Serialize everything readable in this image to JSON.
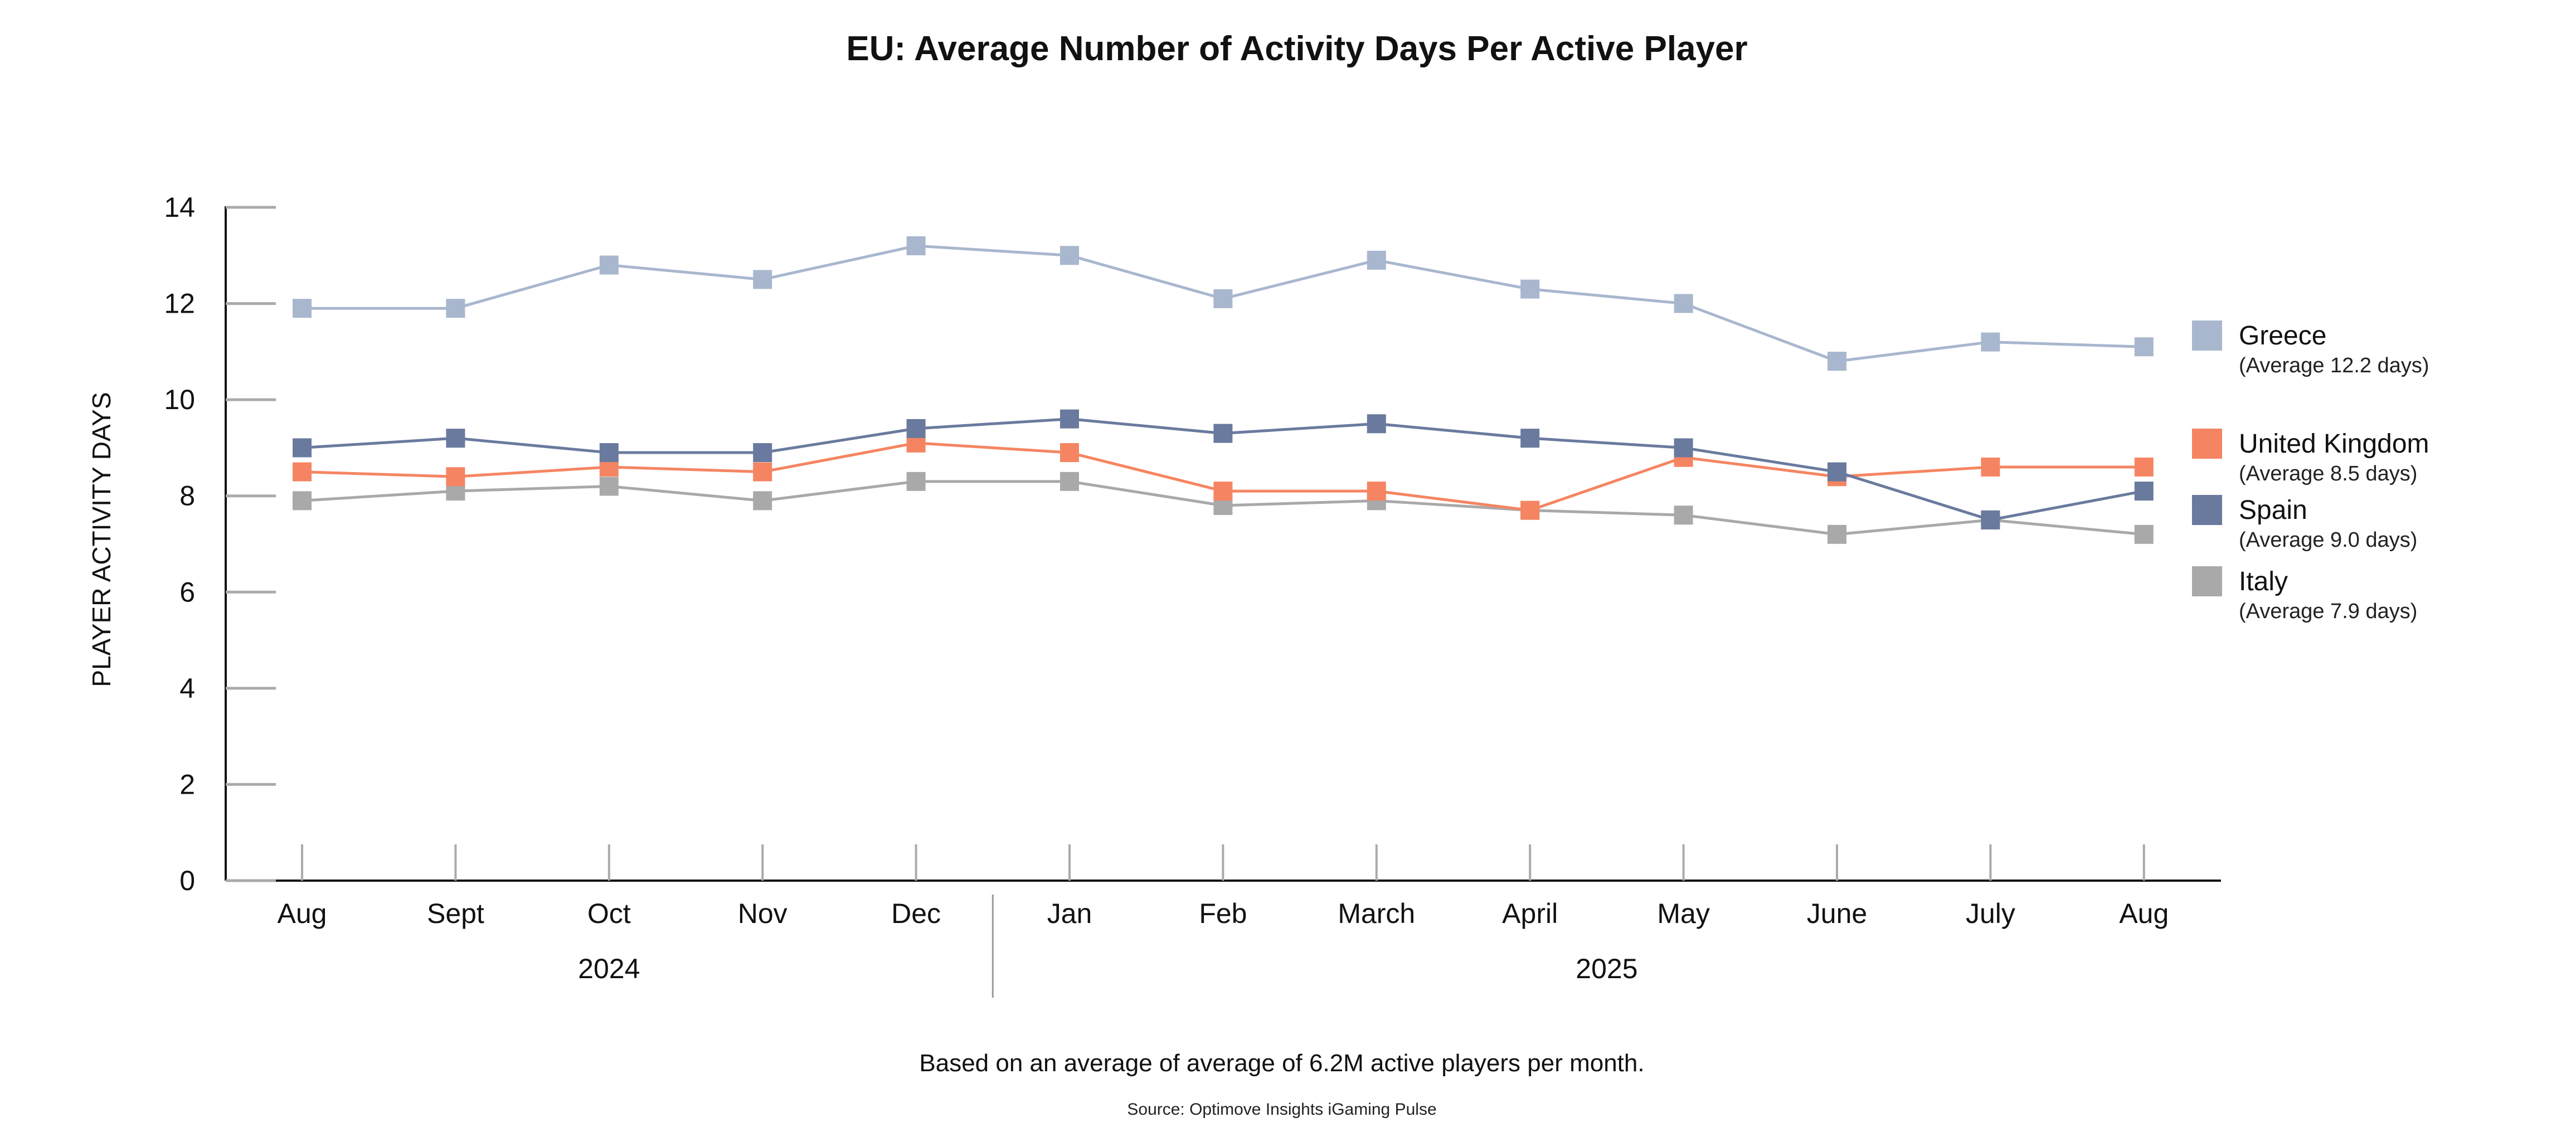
{
  "chart_data": {
    "type": "line",
    "title": "EU: Average Number of Activity Days Per Active Player",
    "ylabel": "PLAYER ACTIVITY DAYS",
    "xlabel": "",
    "ylim": [
      0,
      14
    ],
    "yticks": [
      0,
      2,
      4,
      6,
      8,
      10,
      12,
      14
    ],
    "categories": [
      "Aug",
      "Sept",
      "Oct",
      "Nov",
      "Dec",
      "Jan",
      "Feb",
      "March",
      "April",
      "May",
      "June",
      "July",
      "Aug"
    ],
    "year_groups": [
      {
        "label": "2024",
        "months": 5
      },
      {
        "label": "2025",
        "months": 8
      }
    ],
    "grid": false,
    "legend_placement": "right",
    "marker": "square",
    "series": [
      {
        "name": "Greece",
        "note": "(Average 12.2 days)",
        "color": "#a8b7ce",
        "values": [
          11.9,
          11.9,
          12.8,
          12.5,
          13.2,
          13.0,
          12.1,
          12.9,
          12.3,
          12.0,
          10.8,
          11.2,
          11.1
        ]
      },
      {
        "name": "United Kingdom",
        "note": "(Average 8.5 days)",
        "color": "#f58562",
        "values": [
          8.5,
          8.4,
          8.6,
          8.5,
          9.1,
          8.9,
          8.1,
          8.1,
          7.7,
          8.8,
          8.4,
          8.6,
          8.6
        ]
      },
      {
        "name": "Spain",
        "note": "(Average 9.0 days)",
        "color": "#6a7a9e",
        "values": [
          9.0,
          9.2,
          8.9,
          8.9,
          9.4,
          9.6,
          9.3,
          9.5,
          9.2,
          9.0,
          8.5,
          7.5,
          8.1
        ]
      },
      {
        "name": "Italy",
        "note": "(Average 7.9 days)",
        "color": "#a9a9a9",
        "values": [
          7.9,
          8.1,
          8.2,
          7.9,
          8.3,
          8.3,
          7.8,
          7.9,
          7.7,
          7.6,
          7.2,
          7.5,
          7.2
        ]
      }
    ],
    "draw_order": [
      0,
      3,
      1,
      2
    ],
    "footnote": "Based on an average of average of 6.2M active players per month.",
    "source": "Source: Optimove Insights iGaming Pulse"
  }
}
